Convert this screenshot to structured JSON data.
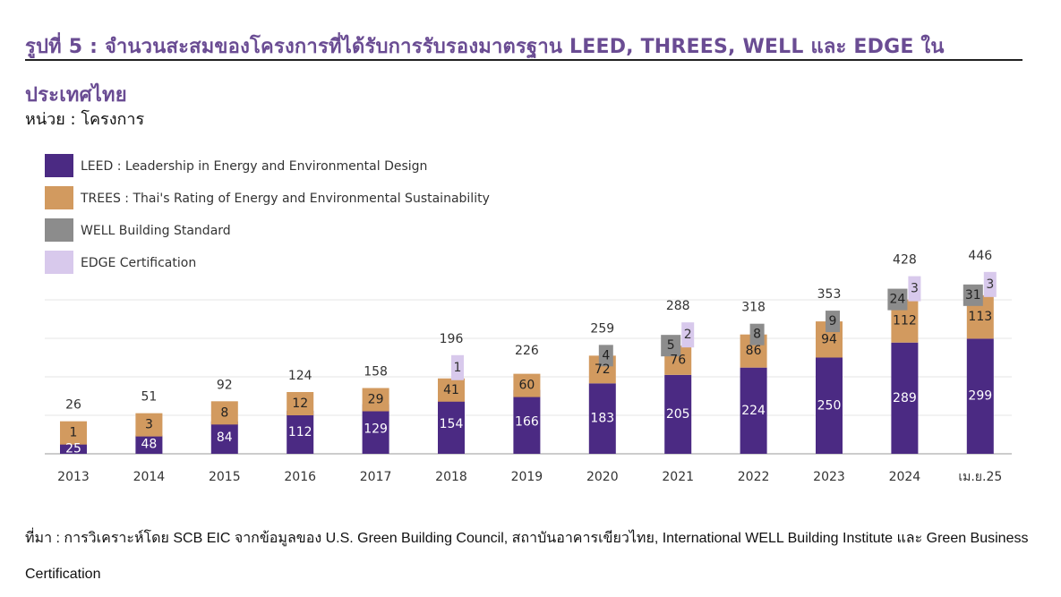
{
  "title": "รูปที่ 5 : จำนวนสะสมของโครงการที่ได้รับการรับรองมาตรฐาน LEED, THREES, WELL และ EDGE ในประเทศไทย",
  "unit": "หน่วย : โครงการ",
  "source": "ที่มา : การวิเคราะห์โดย SCB EIC จากข้อมูลของ U.S. Green Building Council, สถาบันอาคารเขียวไทย, International WELL Building Institute และ Green Business Certification",
  "colors": {
    "title": "#6a4c93",
    "leed": "#4b2a83",
    "trees": "#d29a5f",
    "well": "#8c8c8c",
    "edge": "#d8c9ec"
  },
  "chart_data": {
    "type": "bar",
    "stacked": true,
    "categories": [
      "2013",
      "2014",
      "2015",
      "2016",
      "2017",
      "2018",
      "2019",
      "2020",
      "2021",
      "2022",
      "2023",
      "2024",
      "เม.ย.25"
    ],
    "series": [
      {
        "name": "LEED : Leadership in Energy and Environmental Design",
        "key": "leed",
        "values": [
          25,
          48,
          84,
          112,
          129,
          154,
          166,
          183,
          205,
          224,
          250,
          289,
          299
        ]
      },
      {
        "name": "TREES : Thai's Rating of Energy and Environmental Sustainability",
        "key": "trees",
        "values": [
          1,
          3,
          8,
          12,
          29,
          41,
          60,
          72,
          76,
          86,
          94,
          112,
          113
        ]
      },
      {
        "name": "WELL Building Standard",
        "key": "well",
        "values": [
          0,
          0,
          0,
          0,
          0,
          0,
          0,
          4,
          5,
          8,
          9,
          24,
          31
        ]
      },
      {
        "name": "EDGE Certification",
        "key": "edge",
        "values": [
          0,
          0,
          0,
          0,
          0,
          1,
          0,
          0,
          2,
          0,
          0,
          3,
          3
        ]
      }
    ],
    "totals": [
      26,
      51,
      92,
      124,
      158,
      196,
      226,
      259,
      288,
      318,
      353,
      428,
      446
    ],
    "ylim": [
      0,
      470
    ],
    "grid": true,
    "legend": "top-left"
  }
}
